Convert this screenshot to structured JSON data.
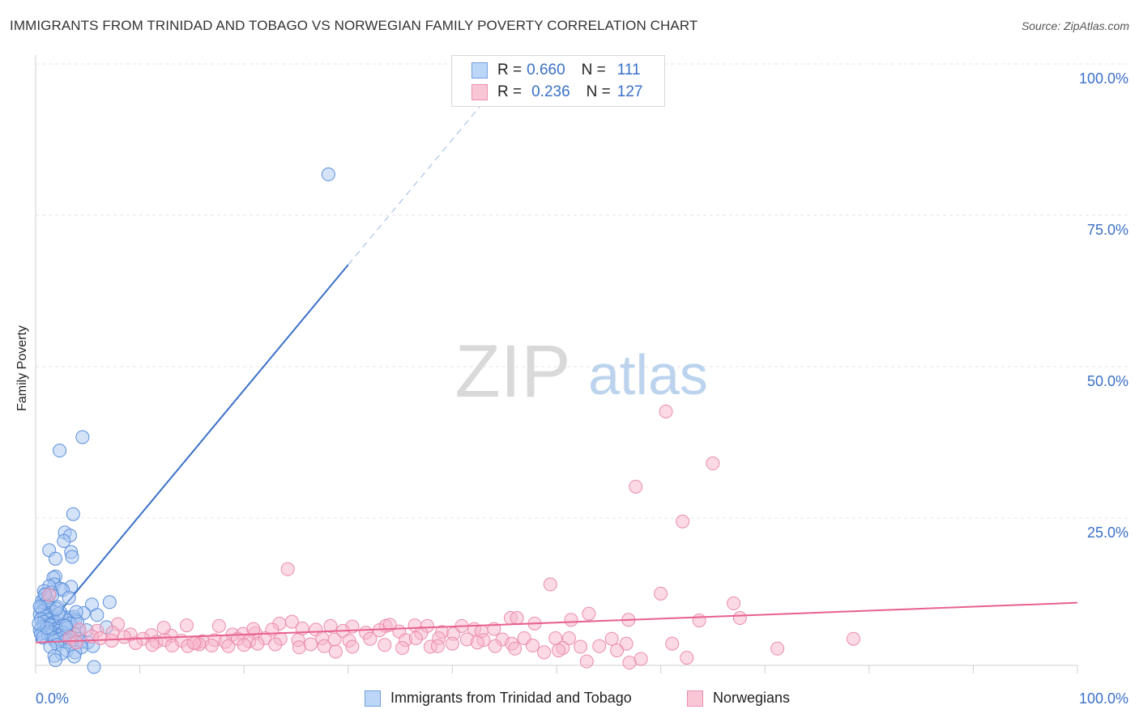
{
  "title": "IMMIGRANTS FROM TRINIDAD AND TOBAGO VS NORWEGIAN FAMILY POVERTY CORRELATION CHART",
  "source": "Source: ZipAtlas.com",
  "watermark": {
    "zip": "ZIP",
    "atlas": "atlas"
  },
  "colors": {
    "blue": "#3a70c8",
    "blue_fill": "#a9c8f2",
    "pink": "#e8608f",
    "pink_fill": "#f7b6cb",
    "axis_text": "#3a70c8"
  },
  "legend": {
    "rows": [
      {
        "r_label": "R =",
        "r_value": "0.660",
        "n_label": "N =",
        "n_value": "111"
      },
      {
        "r_label": "R =",
        "r_value": "0.236",
        "n_label": "N =",
        "n_value": "127"
      }
    ],
    "bottom": [
      "Immigrants from Trinidad and Tobago",
      "Norwegians"
    ]
  },
  "chart_data": {
    "type": "scatter",
    "title": "IMMIGRANTS FROM TRINIDAD AND TOBAGO VS NORWEGIAN FAMILY POVERTY CORRELATION CHART",
    "xlabel": "",
    "ylabel": "Family Poverty",
    "xlim": [
      0,
      100
    ],
    "ylim": [
      0,
      100
    ],
    "x_tick_labels": [
      "0.0%",
      "100.0%"
    ],
    "y_tick_labels": [
      "100.0%",
      "75.0%",
      "50.0%",
      "25.0%"
    ],
    "y_ticks": [
      100,
      75,
      50,
      25
    ],
    "grid": true,
    "series": [
      {
        "name": "Immigrants from Trinidad and Tobago",
        "R": 0.66,
        "N": 111,
        "trend": {
          "x0": 0,
          "y0": 5.5,
          "x_solid_end": 30,
          "x_dash_end": 44,
          "slope": 2.05
        },
        "points": [
          [
            28.1,
            81.8
          ],
          [
            4.5,
            38.8
          ],
          [
            2.3,
            36.6
          ],
          [
            3.6,
            26.2
          ],
          [
            2.8,
            23.2
          ],
          [
            3.3,
            22.7
          ],
          [
            2.7,
            21.8
          ],
          [
            1.3,
            20.3
          ],
          [
            3.4,
            20.0
          ],
          [
            3.5,
            19.2
          ],
          [
            1.9,
            18.9
          ],
          [
            1.9,
            16.0
          ],
          [
            1.7,
            15.8
          ],
          [
            1.8,
            14.7
          ],
          [
            1.3,
            14.4
          ],
          [
            3.4,
            14.3
          ],
          [
            2.4,
            14.0
          ],
          [
            2.6,
            13.8
          ],
          [
            0.8,
            13.6
          ],
          [
            1.5,
            13.4
          ],
          [
            0.9,
            12.9
          ],
          [
            1.0,
            12.5
          ],
          [
            0.8,
            12.3
          ],
          [
            3.2,
            12.5
          ],
          [
            0.6,
            12.0
          ],
          [
            1.0,
            11.8
          ],
          [
            7.1,
            11.8
          ],
          [
            5.4,
            11.4
          ],
          [
            1.3,
            11.2
          ],
          [
            2.1,
            11.0
          ],
          [
            0.5,
            10.8
          ],
          [
            0.9,
            10.6
          ],
          [
            1.4,
            10.5
          ],
          [
            0.6,
            10.3
          ],
          [
            1.8,
            10.2
          ],
          [
            2.4,
            10.1
          ],
          [
            4.6,
            10.0
          ],
          [
            0.4,
            9.8
          ],
          [
            1.1,
            9.7
          ],
          [
            0.9,
            9.5
          ],
          [
            2.6,
            9.4
          ],
          [
            3.3,
            9.3
          ],
          [
            3.7,
            9.4
          ],
          [
            1.6,
            9.2
          ],
          [
            0.5,
            9.0
          ],
          [
            1.2,
            8.9
          ],
          [
            3.8,
            8.9
          ],
          [
            3.1,
            8.8
          ],
          [
            0.8,
            8.6
          ],
          [
            1.7,
            8.5
          ],
          [
            1.9,
            8.4
          ],
          [
            3.3,
            8.3
          ],
          [
            1.3,
            8.2
          ],
          [
            1.4,
            8.0
          ],
          [
            2.7,
            8.0
          ],
          [
            0.6,
            7.8
          ],
          [
            0.8,
            7.7
          ],
          [
            2.0,
            7.5
          ],
          [
            3.0,
            7.6
          ],
          [
            1.0,
            7.4
          ],
          [
            1.8,
            7.3
          ],
          [
            0.4,
            7.2
          ],
          [
            2.1,
            7.1
          ],
          [
            1.3,
            7.0
          ],
          [
            4.1,
            7.1
          ],
          [
            1.6,
            6.9
          ],
          [
            0.7,
            6.8
          ],
          [
            2.6,
            6.8
          ],
          [
            1.5,
            6.7
          ],
          [
            0.5,
            6.6
          ],
          [
            1.2,
            6.5
          ],
          [
            2.4,
            6.4
          ],
          [
            3.7,
            6.5
          ],
          [
            1.5,
            6.3
          ],
          [
            2.8,
            6.2
          ],
          [
            3.5,
            6.1
          ],
          [
            0.7,
            6.0
          ],
          [
            1.7,
            5.9
          ],
          [
            4.2,
            5.8
          ],
          [
            2.2,
            5.7
          ],
          [
            3.1,
            5.6
          ],
          [
            1.8,
            5.5
          ],
          [
            2.8,
            5.4
          ],
          [
            4.4,
            5.3
          ],
          [
            5.0,
            5.2
          ],
          [
            3.5,
            5.0
          ],
          [
            2.1,
            4.8
          ],
          [
            5.5,
            4.6
          ],
          [
            1.4,
            4.5
          ],
          [
            4.4,
            4.4
          ],
          [
            3.0,
            3.9
          ],
          [
            3.8,
            3.6
          ],
          [
            2.5,
            3.4
          ],
          [
            1.8,
            3.0
          ],
          [
            3.7,
            2.9
          ],
          [
            1.9,
            2.3
          ],
          [
            5.6,
            1.2
          ],
          [
            1.2,
            12.1
          ],
          [
            0.4,
            11.1
          ],
          [
            2.2,
            9.9
          ],
          [
            4.0,
            8.6
          ],
          [
            1.1,
            7.6
          ],
          [
            2.9,
            7.9
          ],
          [
            0.3,
            8.3
          ],
          [
            4.9,
            7.2
          ],
          [
            6.8,
            7.7
          ],
          [
            5.9,
            9.7
          ],
          [
            1.6,
            12.9
          ],
          [
            0.9,
            13.1
          ],
          [
            2.0,
            10.7
          ],
          [
            3.9,
            10.2
          ]
        ]
      },
      {
        "name": "Norwegians",
        "R": 0.236,
        "N": 127,
        "trend": {
          "x0": 0,
          "y0": 5.2,
          "x1": 100,
          "y1": 11.7
        },
        "points": [
          [
            60.5,
            43.0
          ],
          [
            65.0,
            34.5
          ],
          [
            57.6,
            30.7
          ],
          [
            62.1,
            25.0
          ],
          [
            24.2,
            17.2
          ],
          [
            49.4,
            14.7
          ],
          [
            60.0,
            13.2
          ],
          [
            67.0,
            11.6
          ],
          [
            1.3,
            13.0
          ],
          [
            53.1,
            9.9
          ],
          [
            7.9,
            8.2
          ],
          [
            14.5,
            8.0
          ],
          [
            17.6,
            7.9
          ],
          [
            23.4,
            8.3
          ],
          [
            24.6,
            8.6
          ],
          [
            28.3,
            7.9
          ],
          [
            30.4,
            7.8
          ],
          [
            33.6,
            7.9
          ],
          [
            36.4,
            8.0
          ],
          [
            37.6,
            7.9
          ],
          [
            40.9,
            7.9
          ],
          [
            45.6,
            9.2
          ],
          [
            46.2,
            9.2
          ],
          [
            47.9,
            8.3
          ],
          [
            51.4,
            8.9
          ],
          [
            56.9,
            8.9
          ],
          [
            63.7,
            8.8
          ],
          [
            67.6,
            9.2
          ],
          [
            4.2,
            7.3
          ],
          [
            5.9,
            7.1
          ],
          [
            7.4,
            6.8
          ],
          [
            9.1,
            6.5
          ],
          [
            11.1,
            6.4
          ],
          [
            13.0,
            6.3
          ],
          [
            18.9,
            6.5
          ],
          [
            19.9,
            6.6
          ],
          [
            21.1,
            6.7
          ],
          [
            22.7,
            7.3
          ],
          [
            25.6,
            7.5
          ],
          [
            26.9,
            7.3
          ],
          [
            29.5,
            7.1
          ],
          [
            31.7,
            6.8
          ],
          [
            33.0,
            7.2
          ],
          [
            34.9,
            7.0
          ],
          [
            37.0,
            6.7
          ],
          [
            39.0,
            6.9
          ],
          [
            40.1,
            6.6
          ],
          [
            42.1,
            7.4
          ],
          [
            42.8,
            7.0
          ],
          [
            44.0,
            7.4
          ],
          [
            3.3,
            6.0
          ],
          [
            5.4,
            6.2
          ],
          [
            6.2,
            5.9
          ],
          [
            8.5,
            6.1
          ],
          [
            10.3,
            5.8
          ],
          [
            11.6,
            5.3
          ],
          [
            12.4,
            5.6
          ],
          [
            14.0,
            5.5
          ],
          [
            15.4,
            5.1
          ],
          [
            16.0,
            5.4
          ],
          [
            17.2,
            5.6
          ],
          [
            18.2,
            5.3
          ],
          [
            19.4,
            5.8
          ],
          [
            20.5,
            5.4
          ],
          [
            22.0,
            5.9
          ],
          [
            23.5,
            5.8
          ],
          [
            25.2,
            5.6
          ],
          [
            27.5,
            5.9
          ],
          [
            28.7,
            5.7
          ],
          [
            30.1,
            5.5
          ],
          [
            32.1,
            5.8
          ],
          [
            35.5,
            5.6
          ],
          [
            36.5,
            5.9
          ],
          [
            38.7,
            5.9
          ],
          [
            41.4,
            5.7
          ],
          [
            43.0,
            5.6
          ],
          [
            44.8,
            5.7
          ],
          [
            46.9,
            5.9
          ],
          [
            51.2,
            5.9
          ],
          [
            55.3,
            5.8
          ],
          [
            9.6,
            5.1
          ],
          [
            11.2,
            4.8
          ],
          [
            13.1,
            4.7
          ],
          [
            14.6,
            4.6
          ],
          [
            15.7,
            4.9
          ],
          [
            16.9,
            4.7
          ],
          [
            18.5,
            4.6
          ],
          [
            20.0,
            4.8
          ],
          [
            21.3,
            5.0
          ],
          [
            23.0,
            4.9
          ],
          [
            25.3,
            4.4
          ],
          [
            27.7,
            4.6
          ],
          [
            30.4,
            4.5
          ],
          [
            33.5,
            4.8
          ],
          [
            35.2,
            4.3
          ],
          [
            37.9,
            4.5
          ],
          [
            40.0,
            5.0
          ],
          [
            42.4,
            5.2
          ],
          [
            44.1,
            4.6
          ],
          [
            45.7,
            5.0
          ],
          [
            47.7,
            4.7
          ],
          [
            50.6,
            4.3
          ],
          [
            54.1,
            4.6
          ],
          [
            56.7,
            5.0
          ],
          [
            61.1,
            5.0
          ],
          [
            71.2,
            4.2
          ],
          [
            78.5,
            5.8
          ],
          [
            48.8,
            3.6
          ],
          [
            50.2,
            3.9
          ],
          [
            52.3,
            4.5
          ],
          [
            55.8,
            3.9
          ],
          [
            58.1,
            2.5
          ],
          [
            62.5,
            2.7
          ],
          [
            52.9,
            2.1
          ],
          [
            57.0,
            1.9
          ],
          [
            28.8,
            3.7
          ],
          [
            38.6,
            4.6
          ],
          [
            7.3,
            5.5
          ],
          [
            15.2,
            5.1
          ],
          [
            26.4,
            4.9
          ],
          [
            3.9,
            5.2
          ],
          [
            46.0,
            4.2
          ],
          [
            34.0,
            8.1
          ],
          [
            20.9,
            7.4
          ],
          [
            12.3,
            7.6
          ],
          [
            49.9,
            5.9
          ]
        ]
      }
    ]
  }
}
